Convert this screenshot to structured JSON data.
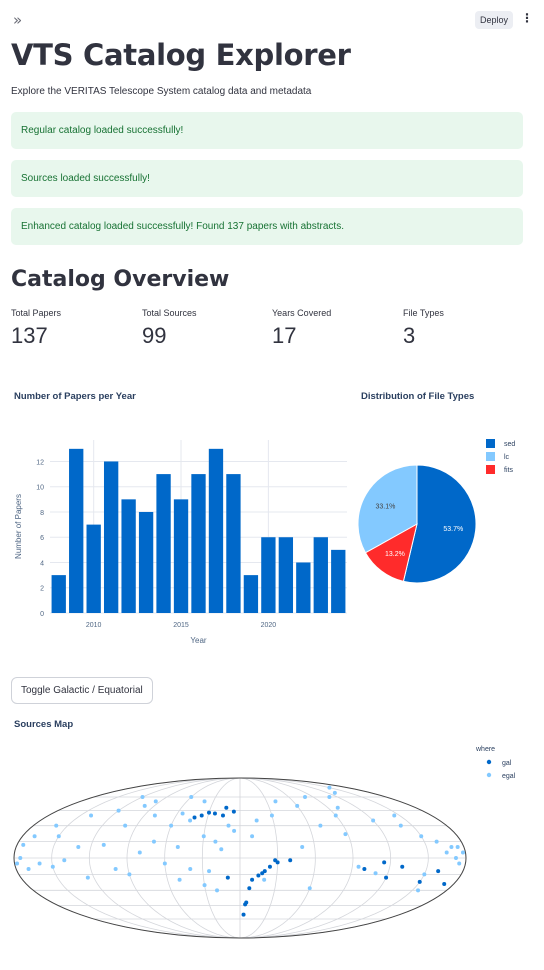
{
  "topbar": {
    "deploy_label": "Deploy",
    "expand_icon": "double-chevron-right-icon",
    "menu_icon": "vertical-ellipsis-icon",
    "menu_glyph": "⋮",
    "expand_glyph": "»"
  },
  "page": {
    "title": "VTS Catalog Explorer",
    "subtitle": "Explore the VERITAS Telescope System catalog data and metadata"
  },
  "alerts": [
    "Regular catalog loaded successfully!",
    "Sources loaded successfully!",
    "Enhanced catalog loaded successfully! Found 137 papers with abstracts."
  ],
  "overview": {
    "title": "Catalog Overview",
    "metrics": [
      {
        "label": "Total Papers",
        "value": "137"
      },
      {
        "label": "Total Sources",
        "value": "99"
      },
      {
        "label": "Years Covered",
        "value": "17"
      },
      {
        "label": "File Types",
        "value": "3"
      }
    ]
  },
  "colors": {
    "bar": "#0068c9",
    "sed": "#0068c9",
    "lc": "#83c9ff",
    "fits": "#ff2b2b",
    "gal": "#0068c9",
    "egal": "#83c9ff",
    "alert_bg": "#e8f7ed",
    "alert_text": "#177233"
  },
  "chart_data": [
    {
      "type": "bar",
      "title": "Number of Papers per Year",
      "xlabel": "Year",
      "ylabel": "Number of Papers",
      "x": [
        2008,
        2009,
        2010,
        2011,
        2012,
        2013,
        2014,
        2015,
        2016,
        2017,
        2018,
        2019,
        2020,
        2021,
        2022,
        2023,
        2024
      ],
      "values": [
        3,
        13,
        7,
        12,
        9,
        8,
        11,
        9,
        11,
        13,
        11,
        3,
        6,
        6,
        4,
        6,
        5
      ],
      "ylim": [
        0,
        13.7
      ],
      "yticks": [
        0,
        2,
        4,
        6,
        8,
        10,
        12
      ],
      "xticks": [
        2010,
        2015,
        2020
      ],
      "grid": true
    },
    {
      "type": "pie",
      "title": "Distribution of File Types",
      "labels": [
        "sed",
        "lc",
        "fits"
      ],
      "values": [
        53.7,
        33.1,
        13.2
      ],
      "slice_labels": [
        "53.7%",
        "33.1%",
        "13.2%"
      ],
      "legend": "top-right"
    },
    {
      "type": "scatter",
      "title": "Sources Map",
      "projection": "mollweide",
      "legend_title": "where",
      "series": [
        {
          "name": "gal",
          "points": [
            [
              30,
              -4
            ],
            [
              28,
              -2
            ],
            [
              24,
              -8
            ],
            [
              20,
              -12
            ],
            [
              18,
              -14
            ],
            [
              15,
              -16
            ],
            [
              10,
              -20
            ],
            [
              8,
              -28
            ],
            [
              6,
              -42
            ],
            [
              5,
              -44
            ],
            [
              4,
              -55
            ],
            [
              -10,
              -18
            ],
            [
              -16,
              40
            ],
            [
              -24,
              42
            ],
            [
              -30,
              43
            ],
            [
              -36,
              40
            ],
            [
              -42,
              38
            ],
            [
              -14,
              48
            ],
            [
              -6,
              44
            ],
            [
              40,
              -2
            ],
            [
              100,
              -10
            ],
            [
              115,
              -4
            ],
            [
              120,
              -18
            ],
            [
              130,
              -8
            ],
            [
              150,
              -22
            ],
            [
              160,
              -12
            ],
            [
              172,
              -24
            ]
          ]
        },
        {
          "name": "egal",
          "points": [
            [
              150,
              72
            ],
            [
              130,
              65
            ],
            [
              110,
              60
            ],
            [
              -40,
              55
            ],
            [
              -60,
              60
            ],
            [
              -100,
              50
            ],
            [
              -120,
              45
            ],
            [
              -140,
              40
            ],
            [
              -160,
              30
            ],
            [
              -170,
              20
            ],
            [
              -175,
              0
            ],
            [
              -178,
              -5
            ],
            [
              -170,
              -10
            ],
            [
              -150,
              -8
            ],
            [
              -130,
              10
            ],
            [
              -110,
              12
            ],
            [
              -100,
              -10
            ],
            [
              -90,
              -15
            ],
            [
              -80,
              5
            ],
            [
              -70,
              15
            ],
            [
              -60,
              -5
            ],
            [
              -50,
              10
            ],
            [
              -40,
              -10
            ],
            [
              -30,
              20
            ],
            [
              -20,
              15
            ],
            [
              -10,
              30
            ],
            [
              -5,
              25
            ],
            [
              10,
              20
            ],
            [
              15,
              35
            ],
            [
              20,
              -20
            ],
            [
              40,
              55
            ],
            [
              60,
              50
            ],
            [
              70,
              30
            ],
            [
              80,
              60
            ],
            [
              90,
              40
            ],
            [
              120,
              35
            ],
            [
              140,
              30
            ],
            [
              150,
              20
            ],
            [
              160,
              15
            ],
            [
              165,
              5
            ],
            [
              170,
              10
            ],
            [
              172,
              0
            ],
            [
              175,
              -5
            ],
            [
              178,
              5
            ],
            [
              -150,
              20
            ],
            [
              -120,
              60
            ],
            [
              -60,
              30
            ],
            [
              -50,
              -20
            ],
            [
              -30,
              -25
            ],
            [
              50,
              10
            ],
            [
              -15,
              8
            ],
            [
              -125,
              -18
            ],
            [
              110,
              -14
            ],
            [
              60,
              -28
            ],
            [
              155,
              -30
            ],
            [
              -160,
              -5
            ],
            [
              -100,
              30
            ],
            [
              -175,
              12
            ],
            [
              -80,
              40
            ],
            [
              145,
              40
            ],
            [
              95,
              -8
            ],
            [
              -95,
              55
            ],
            [
              -45,
              35
            ],
            [
              -20,
              -30
            ],
            [
              175,
              10
            ],
            [
              100,
              48
            ],
            [
              -55,
              42
            ],
            [
              88,
              22
            ],
            [
              -140,
              -2
            ],
            [
              -25,
              -12
            ],
            [
              30,
              40
            ],
            [
              150,
              -15
            ]
          ]
        }
      ]
    }
  ],
  "toggle": {
    "label": "Toggle Galactic / Equatorial"
  }
}
